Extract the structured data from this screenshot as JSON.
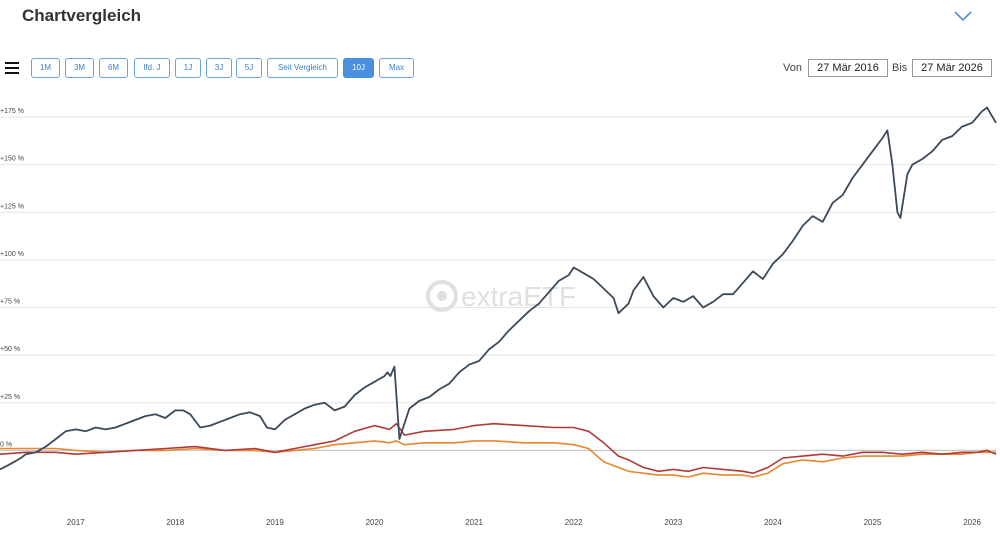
{
  "header": {
    "title": "Chartvergleich",
    "collapse_icon": "chevron-down-icon"
  },
  "toolbar": {
    "menu_icon": "hamburger-menu-icon",
    "ranges": [
      "1M",
      "3M",
      "6M",
      "lfd. J",
      "1J",
      "3J",
      "5J",
      "Seit Vergleich",
      "10J",
      "Max"
    ],
    "active_range": "10J",
    "from_label": "Von",
    "from_value": "27 Mär 2016",
    "to_label": "Bis",
    "to_value": "27 Mär 2026"
  },
  "watermark": {
    "text": "extraETF"
  },
  "colors": {
    "accent": "#4a8fe0",
    "series1": "#3a4a5a",
    "series2": "#b03a3a",
    "series3": "#e8872e",
    "grid": "#e4e4e4"
  },
  "chart_data": {
    "type": "line",
    "xlabel": "",
    "ylabel": "",
    "x_ticks": [
      "2017",
      "2018",
      "2019",
      "2020",
      "2021",
      "2022",
      "2023",
      "2024",
      "2025",
      "2026"
    ],
    "y_ticks": [
      "+175 %",
      "+150 %",
      "+125 %",
      "+100 %",
      "+75 %",
      "+50 %",
      "+25 %",
      "0 %"
    ],
    "xlim": [
      2016.24,
      2026.24
    ],
    "ylim": [
      -25,
      185
    ],
    "grid": true,
    "legend": "none",
    "series": [
      {
        "x": [
          2016.24,
          2016.35,
          2016.45,
          2016.5,
          2016.6,
          2016.7,
          2016.8,
          2016.9,
          2017.0,
          2017.1,
          2017.2,
          2017.3,
          2017.4,
          2017.5,
          2017.6,
          2017.7,
          2017.8,
          2017.9,
          2018.0,
          2018.08,
          2018.15,
          2018.25,
          2018.35,
          2018.45,
          2018.55,
          2018.65,
          2018.75,
          2018.85,
          2018.92,
          2019.0,
          2019.1,
          2019.2,
          2019.3,
          2019.4,
          2019.5,
          2019.6,
          2019.7,
          2019.8,
          2019.9,
          2020.0,
          2020.1,
          2020.13,
          2020.16,
          2020.2,
          2020.25,
          2020.35,
          2020.45,
          2020.55,
          2020.65,
          2020.75,
          2020.85,
          2020.95,
          2021.05,
          2021.15,
          2021.25,
          2021.35,
          2021.45,
          2021.55,
          2021.65,
          2021.75,
          2021.85,
          2021.95,
          2022.0,
          2022.1,
          2022.2,
          2022.3,
          2022.4,
          2022.45,
          2022.55,
          2022.6,
          2022.7,
          2022.75,
          2022.8,
          2022.9,
          2023.0,
          2023.1,
          2023.2,
          2023.3,
          2023.4,
          2023.5,
          2023.6,
          2023.7,
          2023.8,
          2023.9,
          2024.0,
          2024.1,
          2024.2,
          2024.3,
          2024.4,
          2024.5,
          2024.6,
          2024.7,
          2024.8,
          2024.9,
          2025.0,
          2025.1,
          2025.15,
          2025.2,
          2025.25,
          2025.28,
          2025.35,
          2025.4,
          2025.5,
          2025.6,
          2025.7,
          2025.8,
          2025.9,
          2026.0,
          2026.05,
          2026.1,
          2026.15,
          2026.24
        ],
        "values": [
          -10,
          -7,
          -4,
          -2,
          -1,
          2,
          6,
          10,
          11,
          10,
          12,
          11,
          12,
          14,
          16,
          18,
          19,
          17,
          21,
          21,
          19,
          12,
          13,
          15,
          17,
          19,
          20,
          18,
          12,
          11,
          16,
          19,
          22,
          24,
          25,
          21,
          23,
          29,
          33,
          36,
          39,
          41,
          39,
          44,
          6,
          22,
          26,
          28,
          32,
          35,
          41,
          45,
          47,
          53,
          57,
          63,
          68,
          73,
          77,
          83,
          89,
          92,
          96,
          93,
          90,
          85,
          80,
          72,
          77,
          84,
          91,
          86,
          81,
          75,
          80,
          78,
          81,
          75,
          78,
          82,
          82,
          88,
          94,
          90,
          98,
          103,
          110,
          118,
          123,
          120,
          130,
          134,
          143,
          150,
          157,
          164,
          168,
          150,
          125,
          122,
          145,
          150,
          153,
          157,
          163,
          165,
          170,
          172,
          175,
          178,
          180,
          172
        ]
      },
      {
        "x": [
          2016.24,
          2016.5,
          2016.8,
          2017.0,
          2017.3,
          2017.6,
          2017.9,
          2018.2,
          2018.5,
          2018.8,
          2019.0,
          2019.2,
          2019.4,
          2019.6,
          2019.8,
          2020.0,
          2020.15,
          2020.22,
          2020.3,
          2020.5,
          2020.8,
          2021.0,
          2021.2,
          2021.5,
          2021.8,
          2022.0,
          2022.15,
          2022.3,
          2022.45,
          2022.55,
          2022.7,
          2022.85,
          2023.0,
          2023.15,
          2023.3,
          2023.5,
          2023.7,
          2023.8,
          2023.95,
          2024.1,
          2024.3,
          2024.5,
          2024.7,
          2024.9,
          2025.1,
          2025.3,
          2025.5,
          2025.7,
          2025.9,
          2026.05,
          2026.15,
          2026.24
        ],
        "values": [
          -2,
          -1,
          -1,
          -2,
          -1,
          0,
          1,
          2,
          0,
          1,
          -1,
          1,
          3,
          5,
          10,
          13,
          11,
          14,
          8,
          10,
          11,
          13,
          14,
          13,
          12,
          12,
          10,
          4,
          -3,
          -5,
          -9,
          -11,
          -10,
          -11,
          -9,
          -10,
          -11,
          -12,
          -9,
          -4,
          -3,
          -2,
          -3,
          -1,
          -1,
          -2,
          -1,
          -2,
          -1,
          -1,
          0,
          -2
        ]
      },
      {
        "x": [
          2016.24,
          2016.5,
          2016.8,
          2017.0,
          2017.3,
          2017.6,
          2017.9,
          2018.2,
          2018.5,
          2018.8,
          2019.0,
          2019.2,
          2019.4,
          2019.6,
          2019.8,
          2020.0,
          2020.15,
          2020.22,
          2020.3,
          2020.5,
          2020.8,
          2021.0,
          2021.2,
          2021.5,
          2021.8,
          2022.0,
          2022.15,
          2022.3,
          2022.45,
          2022.55,
          2022.7,
          2022.85,
          2023.0,
          2023.15,
          2023.3,
          2023.5,
          2023.7,
          2023.8,
          2023.95,
          2024.1,
          2024.3,
          2024.5,
          2024.7,
          2024.9,
          2025.1,
          2025.3,
          2025.5,
          2025.7,
          2025.9,
          2026.05,
          2026.15,
          2026.24
        ],
        "values": [
          1,
          1,
          1,
          0,
          -1,
          0,
          0,
          1,
          0,
          0,
          -1,
          0,
          1,
          3,
          4,
          5,
          4,
          5,
          3,
          4,
          4,
          5,
          5,
          4,
          4,
          3,
          1,
          -6,
          -9,
          -11,
          -12,
          -13,
          -13,
          -14,
          -12,
          -13,
          -13,
          -14,
          -12,
          -7,
          -5,
          -6,
          -4,
          -3,
          -3,
          -3,
          -2,
          -2,
          -2,
          -1,
          -1,
          -1
        ]
      }
    ]
  }
}
